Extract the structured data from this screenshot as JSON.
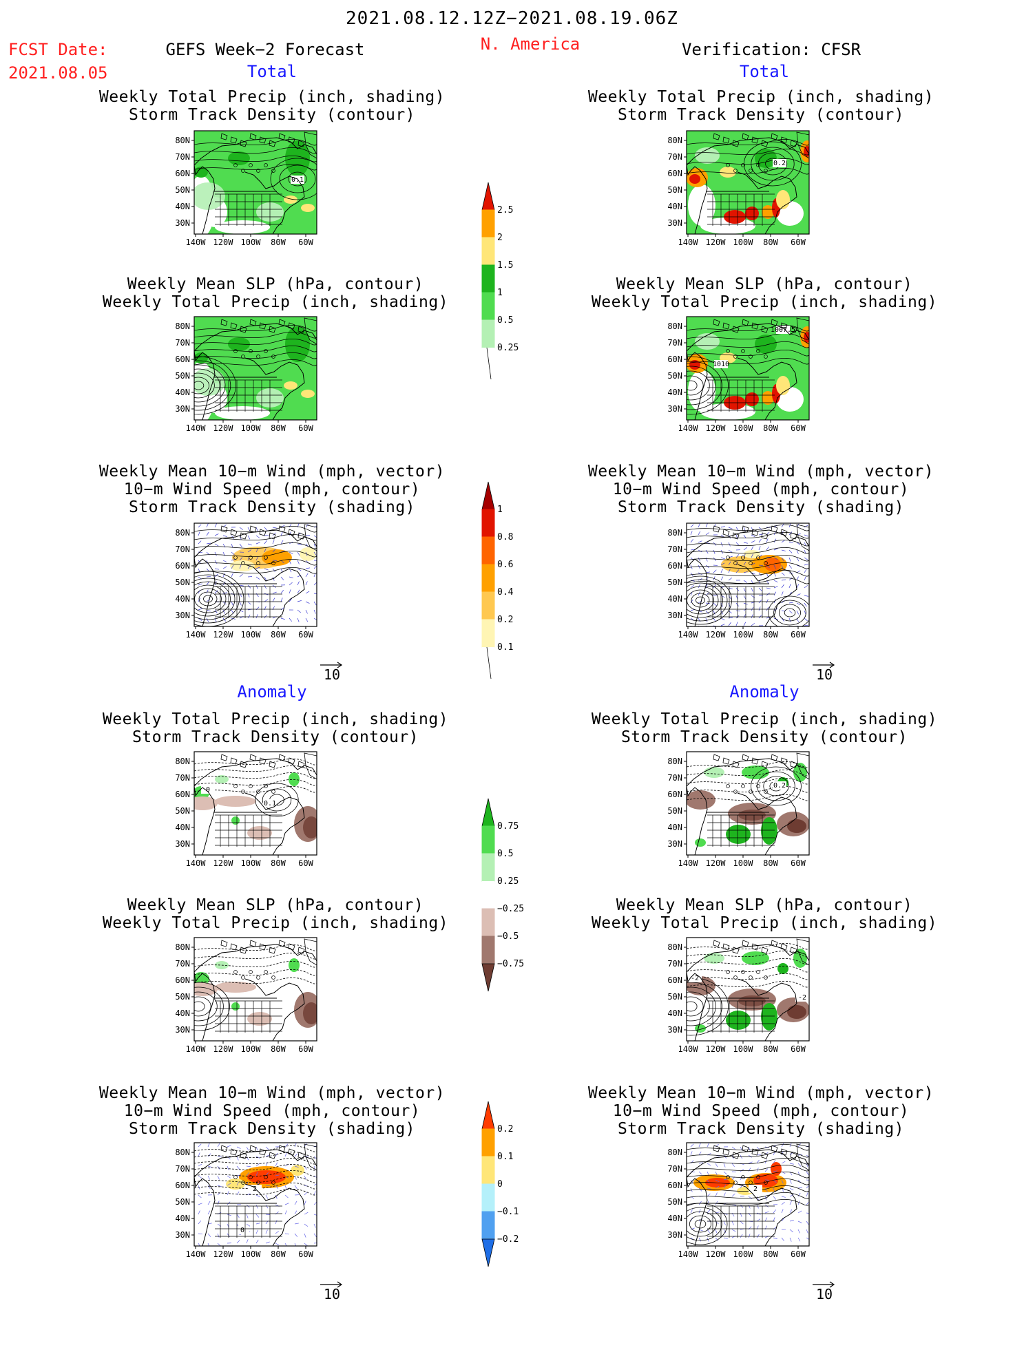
{
  "header": {
    "main_title": "2021.08.12.12Z−2021.08.19.06Z",
    "fcst_label": "FCST Date:",
    "fcst_date": "2021.08.05",
    "left_title": "GEFS Week−2 Forecast",
    "region": "N. America",
    "right_title": "Verification: CFSR"
  },
  "sections": {
    "total": "Total",
    "anomaly": "Anomaly"
  },
  "panel_titles": {
    "precip_storm": [
      "Weekly Total Precip (inch, shading)",
      "Storm Track Density (contour)"
    ],
    "slp_precip": [
      "Weekly Mean SLP (hPa, contour)",
      "Weekly Total Precip (inch, shading)"
    ],
    "wind_storm": [
      "Weekly Mean 10−m Wind (mph, vector)",
      "10−m Wind Speed (mph, contour)",
      "Storm Track Density (shading)"
    ]
  },
  "axes": {
    "lat_ticks": [
      "80N",
      "70N",
      "60N",
      "50N",
      "40N",
      "30N"
    ],
    "lon_ticks": [
      "140W",
      "120W",
      "100W",
      "80W",
      "60W"
    ]
  },
  "vector_ref": "10",
  "contour_labels": {
    "gefs_total_precip": "0.1",
    "cfsr_total_precip": "0.2",
    "cfsr_total_slp_a": "1007.5",
    "cfsr_total_slp_b": "1010",
    "gefs_anom_precip_a": "0",
    "gefs_anom_precip_b": "0.1",
    "cfsr_anom_precip": "0.2",
    "cfsr_anom_slp_a": "-2",
    "cfsr_anom_slp_b": "-2",
    "gefs_anom_wind_a": "2",
    "gefs_anom_wind_b": "0",
    "cfsr_anom_wind": "2"
  },
  "colors": {
    "title_red": "#ff2020",
    "section_blue": "#1a1aff",
    "precip": [
      "#ffffff",
      "#b4f0b4",
      "#50dc50",
      "#1eb41e",
      "#ffe678",
      "#ffa000",
      "#e11400"
    ],
    "storm": [
      "#ffffff",
      "#fff5b4",
      "#ffc850",
      "#ffa000",
      "#ff6400",
      "#e11400",
      "#a50000"
    ],
    "precip_anom": [
      "#6e3c32",
      "#a0786e",
      "#dcbeb4",
      "#ffffff",
      "#b4f0b4",
      "#50dc50",
      "#1eb41e"
    ],
    "storm_anom": [
      "#1e6ee6",
      "#50a0f0",
      "#b4f0fa",
      "#ffe678",
      "#ffa000",
      "#ff3c00"
    ]
  },
  "chart_data": [
    {
      "type": "heatmap",
      "id": "colorbar-total-precip",
      "ticks": [
        "0.25",
        "0.5",
        "1",
        "1.5",
        "2",
        "2.5"
      ]
    },
    {
      "type": "heatmap",
      "id": "colorbar-total-storm-density",
      "ticks": [
        "0.1",
        "0.2",
        "0.4",
        "0.6",
        "0.8",
        "1"
      ]
    },
    {
      "type": "heatmap",
      "id": "colorbar-anomaly-precip",
      "ticks": [
        "−0.75",
        "−0.5",
        "−0.25",
        "0.25",
        "0.5",
        "0.75"
      ]
    },
    {
      "type": "heatmap",
      "id": "colorbar-anomaly-storm-density",
      "ticks": [
        "−0.2",
        "−0.1",
        "0",
        "0.1",
        "0.2"
      ]
    }
  ]
}
